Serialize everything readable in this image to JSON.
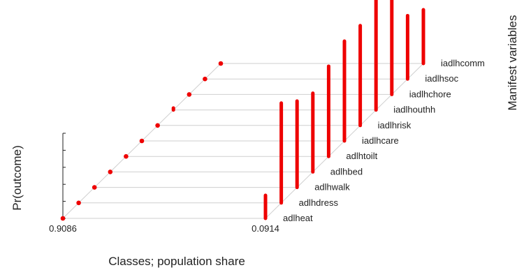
{
  "chart_data": {
    "type": "bar",
    "title": "",
    "xlabel": "Classes; population share",
    "ylabel": "Pr(outcome)",
    "zlabel": "Manifest variables",
    "x_tick_labels": [
      "0.9086",
      "0.0914"
    ],
    "classes": [
      {
        "share": 0.9086,
        "label": "0.9086"
      },
      {
        "share": 0.0914,
        "label": "0.0914"
      }
    ],
    "categories": [
      "adlheat",
      "adlhdress",
      "adlhwalk",
      "adlhbed",
      "adlhtoilt",
      "iadlhcare",
      "iadlhrisk",
      "iadlhouthh",
      "iadlhchore",
      "iadlhsoc",
      "iadlhcomm"
    ],
    "series": [
      {
        "values": [
          0.0,
          0.0,
          0.0,
          0.0,
          0.0,
          0.0,
          0.0,
          0.01,
          0.0,
          0.0,
          0.0
        ]
      },
      {
        "values": [
          0.12,
          0.52,
          0.45,
          0.41,
          0.47,
          0.52,
          0.52,
          0.93,
          1.0,
          0.33,
          0.28
        ]
      }
    ],
    "ylim": [
      0,
      1
    ],
    "y_ticks": 6,
    "colors": {
      "bars": "#ee0000",
      "grid": "#cfcfcf",
      "axis": "#222222"
    }
  }
}
